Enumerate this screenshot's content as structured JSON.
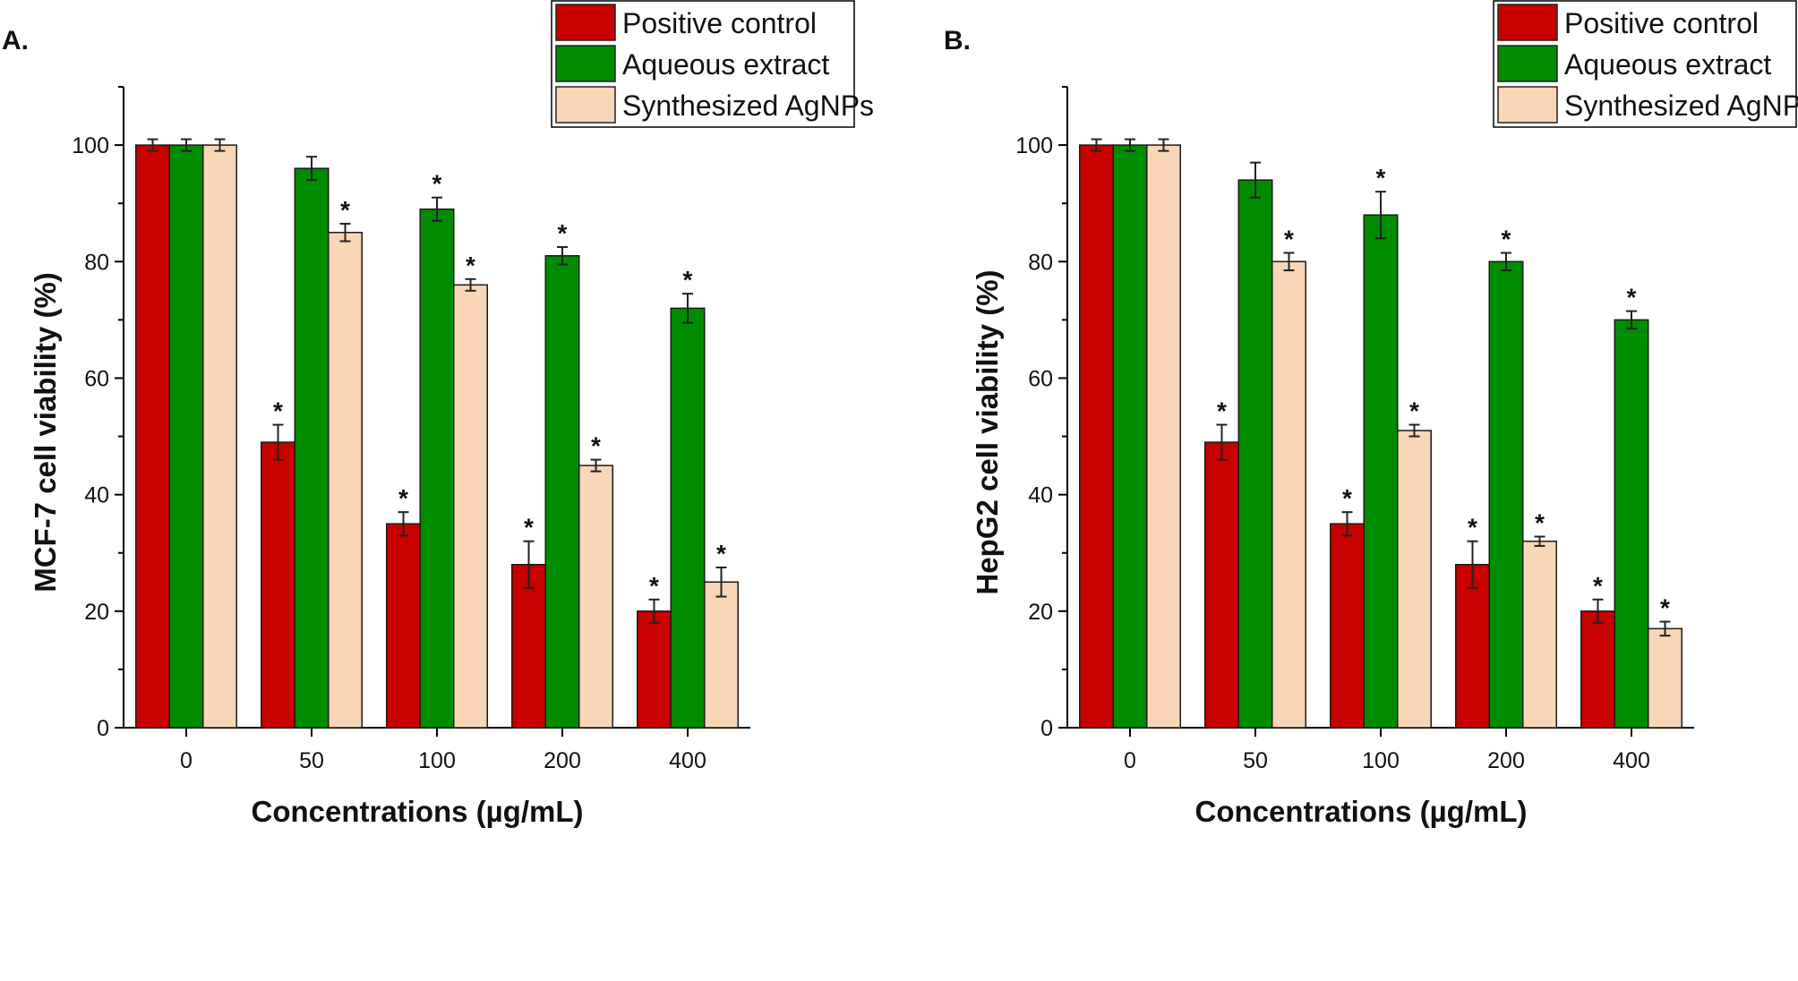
{
  "chart_data": [
    {
      "panel_label": "A.",
      "type": "bar",
      "xlabel": "Concentrations (µg/mL)",
      "ylabel": "MCF-7 cell viability (%)",
      "ylim": [
        0,
        110
      ],
      "yticks": [
        "0",
        "20",
        "40",
        "60",
        "80",
        "100"
      ],
      "categories": [
        "0",
        "50",
        "100",
        "200",
        "400"
      ],
      "legend_position": "top-right",
      "series": [
        {
          "name": "Positive control",
          "color": "#c80000",
          "values": [
            100,
            49,
            35,
            28,
            20
          ],
          "errors": [
            1,
            3,
            2,
            4,
            2
          ],
          "significance": [
            "",
            "*",
            "*",
            "*",
            "*"
          ]
        },
        {
          "name": "Aqueous extract",
          "color": "#008c00",
          "values": [
            100,
            96,
            89,
            81,
            72
          ],
          "errors": [
            1,
            2,
            2,
            1.5,
            2.5
          ],
          "significance": [
            "",
            "",
            "*",
            "*",
            "*"
          ]
        },
        {
          "name": "Synthesized AgNPs",
          "color": "#f9d6b6",
          "values": [
            100,
            85,
            76,
            45,
            25
          ],
          "errors": [
            1,
            1.5,
            1,
            1,
            2.5
          ],
          "significance": [
            "",
            "*",
            "*",
            "*",
            "*"
          ]
        }
      ]
    },
    {
      "panel_label": "B.",
      "type": "bar",
      "xlabel": "Concentrations (µg/mL)",
      "ylabel": "HepG2 cell viability (%)",
      "ylim": [
        0,
        110
      ],
      "yticks": [
        "0",
        "20",
        "40",
        "60",
        "80",
        "100"
      ],
      "categories": [
        "0",
        "50",
        "100",
        "200",
        "400"
      ],
      "legend_position": "top-right",
      "series": [
        {
          "name": "Positive control",
          "color": "#c80000",
          "values": [
            100,
            49,
            35,
            28,
            20
          ],
          "errors": [
            1,
            3,
            2,
            4,
            2
          ],
          "significance": [
            "",
            "*",
            "*",
            "*",
            "*"
          ]
        },
        {
          "name": "Aqueous extract",
          "color": "#008c00",
          "values": [
            100,
            94,
            88,
            80,
            70
          ],
          "errors": [
            1,
            3,
            4,
            1.5,
            1.5
          ],
          "significance": [
            "",
            "",
            "*",
            "*",
            "*"
          ]
        },
        {
          "name": "Synthesized AgNPs",
          "color": "#f9d6b6",
          "values": [
            100,
            80,
            51,
            32,
            17
          ],
          "errors": [
            1,
            1.5,
            1,
            0.8,
            1.2
          ],
          "significance": [
            "",
            "*",
            "*",
            "*",
            "*"
          ]
        }
      ]
    }
  ]
}
